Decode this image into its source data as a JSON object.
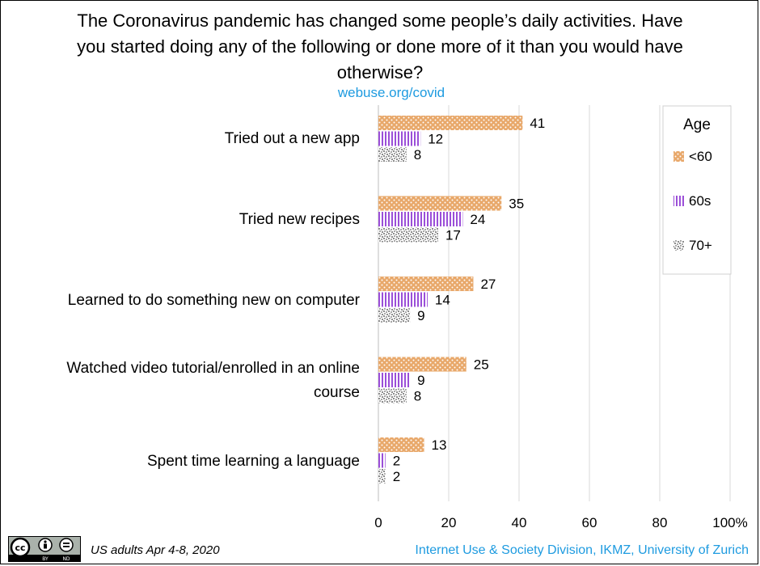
{
  "title": "The Coronavirus pandemic has changed some people’s daily activities. Have you started doing any of the following or done more of it than you would have otherwise?",
  "subtitle": "webuse.org/covid",
  "footer": {
    "left": "US adults Apr 4-8, 2020",
    "right": "Internet Use & Society Division, IKMZ, University of Zurich"
  },
  "license_badge": {
    "icons": [
      "creative-commons-icon",
      "attribution-icon",
      "no-derivatives-icon"
    ],
    "labels": [
      "BY",
      "ND"
    ]
  },
  "chart_data": {
    "type": "bar",
    "orientation": "horizontal",
    "categories": [
      "Tried out a new app",
      "Tried new recipes",
      "Learned to do something new on computer",
      "Watched video tutorial/enrolled in an online course",
      "Spent time learning a language"
    ],
    "series": [
      {
        "name": "<60",
        "values": [
          41,
          35,
          27,
          25,
          13
        ],
        "color": "#e8a86a",
        "pattern": "dots"
      },
      {
        "name": "60s",
        "values": [
          12,
          24,
          14,
          9,
          2
        ],
        "color": "#9b4fd8",
        "pattern": "vertical-stripes"
      },
      {
        "name": "70+",
        "values": [
          8,
          17,
          9,
          8,
          2
        ],
        "color": "#9a9a9a",
        "pattern": "speckle"
      }
    ],
    "xlim": [
      0,
      100
    ],
    "x_ticks": [
      "0",
      "20",
      "40",
      "60",
      "80",
      "100%"
    ],
    "legend": {
      "title": "Age",
      "position": "top-right"
    },
    "grid": true,
    "data_labels": true
  }
}
